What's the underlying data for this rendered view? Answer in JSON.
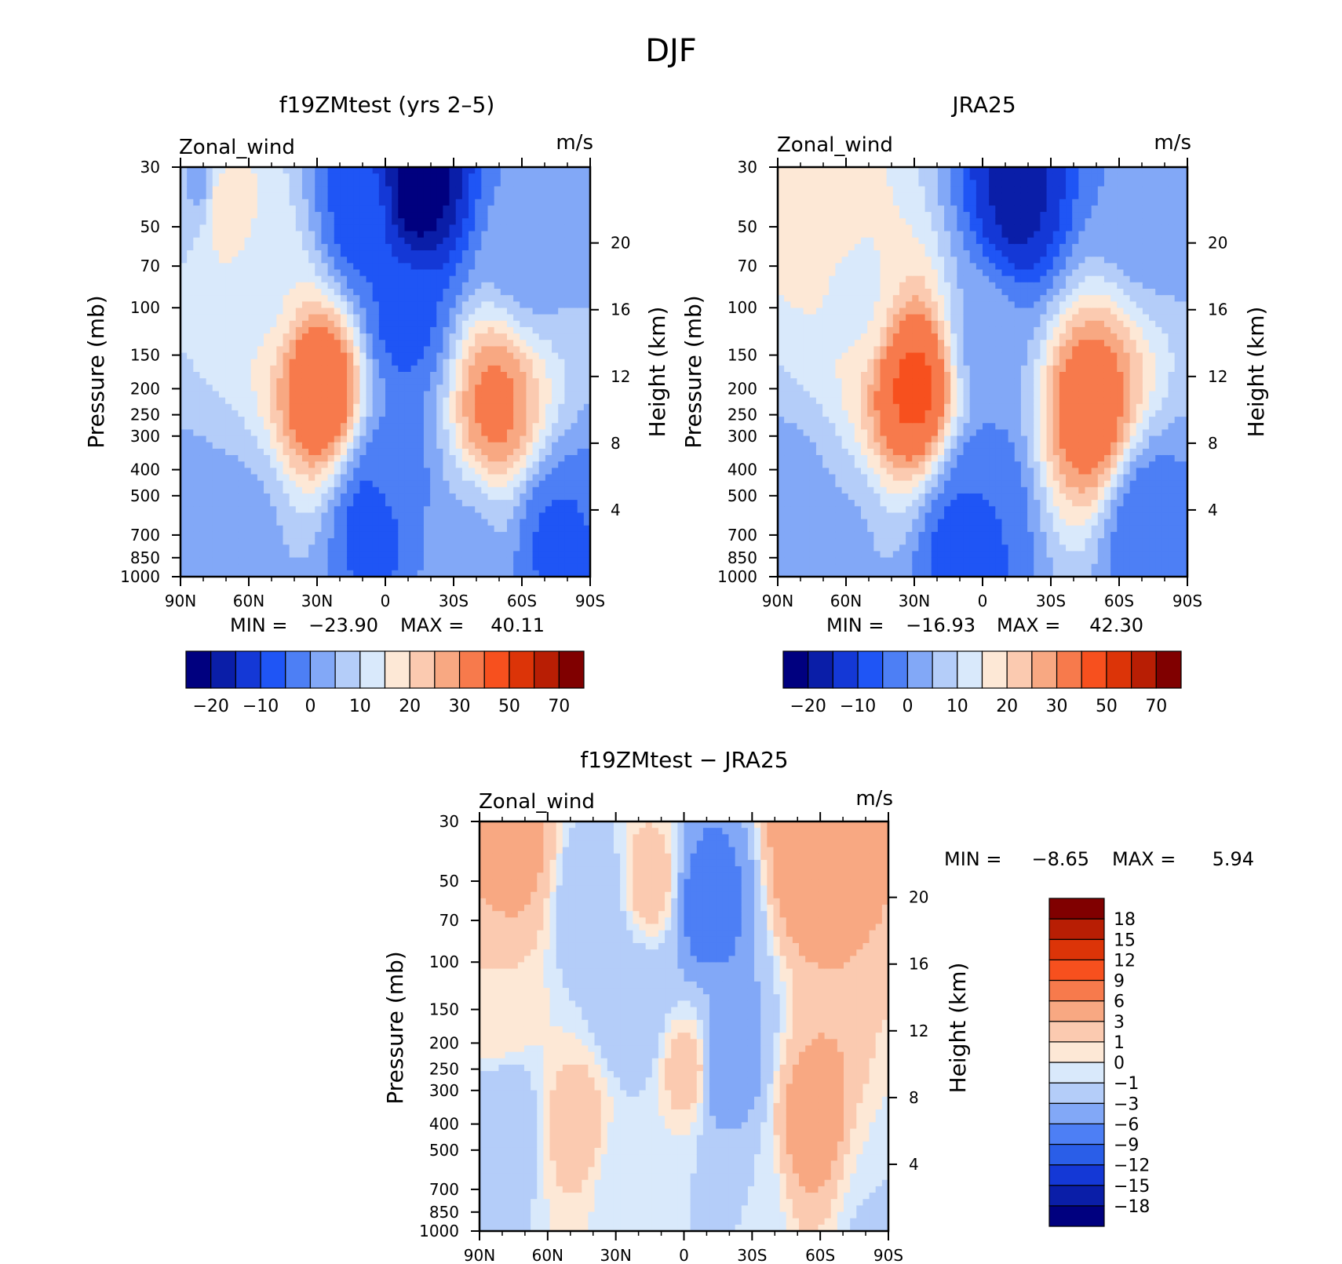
{
  "figure_title": "DJF",
  "palettes": {
    "main": [
      "#00007f",
      "#0a1ea8",
      "#1438d6",
      "#1f55f5",
      "#4d7ff5",
      "#82a8f7",
      "#b4cdf9",
      "#d9e9fb",
      "#fde8d6",
      "#fbcab0",
      "#f8a882",
      "#f77a4c",
      "#f7501e",
      "#dc3408",
      "#b81e04",
      "#800000"
    ],
    "diff": [
      "#00007f",
      "#0a1ea8",
      "#1438d6",
      "#2a5ee8",
      "#4d7ff5",
      "#82a8f7",
      "#b4cdf9",
      "#d9e9fb",
      "#fde8d6",
      "#fbcab0",
      "#f8a882",
      "#f77a4c",
      "#f7501e",
      "#dc3408",
      "#b81e04",
      "#800000"
    ]
  },
  "chart_data": [
    {
      "type": "heatmap",
      "title": "f19ZMtest (yrs 2–5)",
      "left_label": "Zonal_wind",
      "right_label": "m/s",
      "ylabel": "Pressure (mb)",
      "y2label": "Height (km)",
      "x_ticklabels": [
        "90N",
        "60N",
        "30N",
        "0",
        "30S",
        "60S",
        "90S"
      ],
      "y_ticklabels": [
        "30",
        "50",
        "70",
        "100",
        "150",
        "200",
        "250",
        "300",
        "400",
        "500",
        "700",
        "850",
        "1000"
      ],
      "y2_ticklabels": [
        "20",
        "16",
        "12",
        "8",
        "4"
      ],
      "min_label": "MIN =",
      "min_value": "−23.90",
      "max_label": "MAX =",
      "max_value": "40.11",
      "colorbar_labels": [
        "−20",
        "−10",
        "0",
        "10",
        "20",
        "30",
        "50",
        "70"
      ],
      "levels": [
        -25,
        -20,
        -15,
        -10,
        -5,
        0,
        5,
        10,
        15,
        20,
        25,
        30,
        40,
        50,
        60,
        70
      ],
      "centers": [
        {
          "lat": 80,
          "p": 35,
          "value": 3
        },
        {
          "lat": 72,
          "p": 40,
          "value": 20
        },
        {
          "lat": 55,
          "p": 80,
          "value": 14
        },
        {
          "lat": 28,
          "p": 200,
          "value": 40.11
        },
        {
          "lat": 10,
          "p": 45,
          "value": -8
        },
        {
          "lat": -14,
          "p": 36,
          "value": -23.9
        },
        {
          "lat": -8,
          "p": 110,
          "value": -7
        },
        {
          "lat": -4,
          "p": 420,
          "value": -2
        },
        {
          "lat": 5,
          "p": 620,
          "value": -8
        },
        {
          "lat": -48,
          "p": 230,
          "value": 32
        },
        {
          "lat": -36,
          "p": 800,
          "value": 4
        },
        {
          "lat": -62,
          "p": 60,
          "value": 2
        },
        {
          "lat": -75,
          "p": 750,
          "value": -6
        },
        {
          "lat": 88,
          "p": 800,
          "value": 1
        },
        {
          "lat": 62,
          "p": 700,
          "value": 3
        }
      ]
    },
    {
      "type": "heatmap",
      "title": "JRA25",
      "left_label": "Zonal_wind",
      "right_label": "m/s",
      "ylabel": "Pressure (mb)",
      "y2label": "Height (km)",
      "x_ticklabels": [
        "90N",
        "60N",
        "30N",
        "0",
        "30S",
        "60S",
        "90S"
      ],
      "y_ticklabels": [
        "30",
        "50",
        "70",
        "100",
        "150",
        "200",
        "250",
        "300",
        "400",
        "500",
        "700",
        "850",
        "1000"
      ],
      "y2_ticklabels": [
        "20",
        "16",
        "12",
        "8",
        "4"
      ],
      "min_label": "MIN =",
      "min_value": "−16.93",
      "max_label": "MAX =",
      "max_value": "42.30",
      "colorbar_labels": [
        "−20",
        "−10",
        "0",
        "10",
        "20",
        "30",
        "50",
        "70"
      ],
      "levels": [
        -25,
        -20,
        -15,
        -10,
        -5,
        0,
        5,
        10,
        15,
        20,
        25,
        30,
        40,
        50,
        60,
        70
      ],
      "centers": [
        {
          "lat": 70,
          "p": 40,
          "value": 18
        },
        {
          "lat": 55,
          "p": 90,
          "value": 14
        },
        {
          "lat": 30,
          "p": 200,
          "value": 42.3
        },
        {
          "lat": -15,
          "p": 40,
          "value": -16.93
        },
        {
          "lat": -2,
          "p": 130,
          "value": 2
        },
        {
          "lat": 0,
          "p": 500,
          "value": -5
        },
        {
          "lat": 8,
          "p": 800,
          "value": -9
        },
        {
          "lat": -47,
          "p": 240,
          "value": 36
        },
        {
          "lat": -70,
          "p": 35,
          "value": 0
        },
        {
          "lat": -72,
          "p": 650,
          "value": -4
        },
        {
          "lat": 85,
          "p": 600,
          "value": 2
        },
        {
          "lat": 62,
          "p": 800,
          "value": 4
        }
      ]
    },
    {
      "type": "heatmap",
      "title": "f19ZMtest − JRA25",
      "left_label": "Zonal_wind",
      "right_label": "m/s",
      "ylabel": "Pressure (mb)",
      "y2label": "Height (km)",
      "x_ticklabels": [
        "90N",
        "60N",
        "30N",
        "0",
        "30S",
        "60S",
        "90S"
      ],
      "y_ticklabels": [
        "30",
        "50",
        "70",
        "100",
        "150",
        "200",
        "250",
        "300",
        "400",
        "500",
        "700",
        "850",
        "1000"
      ],
      "y2_ticklabels": [
        "20",
        "16",
        "12",
        "8",
        "4"
      ],
      "min_label": "MIN =",
      "min_value": "−8.65",
      "max_label": "MAX =",
      "max_value": "5.94",
      "colorbar_labels": [
        "18",
        "15",
        "12",
        "9",
        "6",
        "3",
        "1",
        "0",
        "−1",
        "−3",
        "−6",
        "−9",
        "−12",
        "−15",
        "−18"
      ],
      "levels": [
        -21,
        -18,
        -15,
        -12,
        -9,
        -6,
        -3,
        -1,
        0,
        1,
        3,
        6,
        9,
        12,
        15,
        18
      ],
      "centers": [
        {
          "lat": 75,
          "p": 40,
          "value": 4
        },
        {
          "lat": 82,
          "p": 150,
          "value": 1
        },
        {
          "lat": 47,
          "p": 400,
          "value": 2
        },
        {
          "lat": 80,
          "p": 400,
          "value": -3
        },
        {
          "lat": 40,
          "p": 60,
          "value": -3
        },
        {
          "lat": 22,
          "p": 150,
          "value": -3
        },
        {
          "lat": 14,
          "p": 50,
          "value": 2
        },
        {
          "lat": -10,
          "p": 60,
          "value": -8.65
        },
        {
          "lat": -2,
          "p": 250,
          "value": 2
        },
        {
          "lat": -18,
          "p": 250,
          "value": -6
        },
        {
          "lat": 25,
          "p": 600,
          "value": -1
        },
        {
          "lat": -28,
          "p": 700,
          "value": -1
        },
        {
          "lat": -56,
          "p": 40,
          "value": 5.94
        },
        {
          "lat": -58,
          "p": 400,
          "value": 5
        },
        {
          "lat": -82,
          "p": 600,
          "value": 0
        },
        {
          "lat": -88,
          "p": 900,
          "value": -3
        }
      ]
    }
  ]
}
